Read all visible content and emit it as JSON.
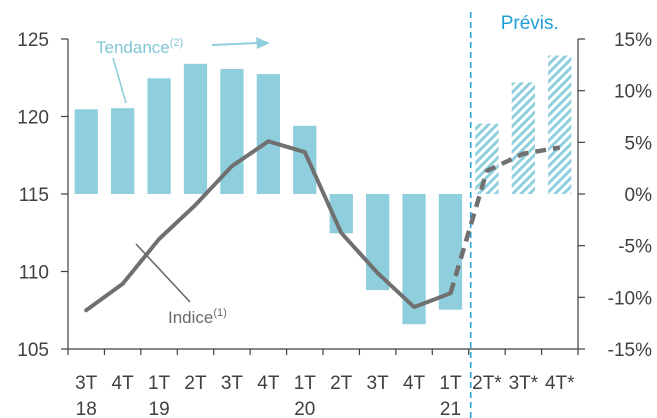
{
  "chart_data": {
    "type": "bar",
    "title": "",
    "categories": [
      [
        "3T",
        "18"
      ],
      [
        "4T",
        ""
      ],
      [
        "1T",
        "19"
      ],
      [
        "2T",
        ""
      ],
      [
        "3T",
        ""
      ],
      [
        "4T",
        ""
      ],
      [
        "1T",
        "20"
      ],
      [
        "2T",
        ""
      ],
      [
        "3T",
        ""
      ],
      [
        "4T",
        ""
      ],
      [
        "1T",
        "21"
      ],
      [
        "2T*",
        ""
      ],
      [
        "3T*",
        ""
      ],
      [
        "4T*",
        ""
      ]
    ],
    "left_axis": {
      "ylim": [
        105,
        125
      ],
      "ticks": [
        "105",
        "110",
        "115",
        "120",
        "125"
      ],
      "values": [
        105,
        110,
        115,
        120,
        125
      ]
    },
    "right_axis": {
      "ylim": [
        -15,
        15
      ],
      "ticks": [
        "-15%",
        "-10%",
        "-5%",
        "0%",
        "5%",
        "10%",
        "15%"
      ],
      "values": [
        -15,
        -10,
        -5,
        0,
        5,
        10,
        15
      ]
    },
    "series": [
      {
        "name": "Tendance",
        "superscript": "(2)",
        "type": "bar",
        "axis": "right",
        "values": [
          8.2,
          8.3,
          11.2,
          12.6,
          12.1,
          11.6,
          6.6,
          -3.8,
          -9.3,
          -12.6,
          -11.2,
          6.8,
          10.8,
          13.4
        ],
        "forecast_from_index": 11
      },
      {
        "name": "Indice",
        "superscript": "(1)",
        "type": "line",
        "axis": "left",
        "values": [
          107.5,
          109.2,
          112.1,
          114.3,
          116.8,
          118.4,
          117.7,
          112.5,
          109.9,
          107.7,
          108.6,
          116.5,
          117.6,
          118.0
        ],
        "forecast_from_index": 10
      }
    ],
    "annotations": {
      "forecast": "Prévis."
    },
    "colors": {
      "bar": "#8fcfdd",
      "bar_forecast": "#8fcfdd",
      "line": "#707070",
      "forecast_line": "#2aa3d9",
      "axis": "#404040"
    }
  }
}
